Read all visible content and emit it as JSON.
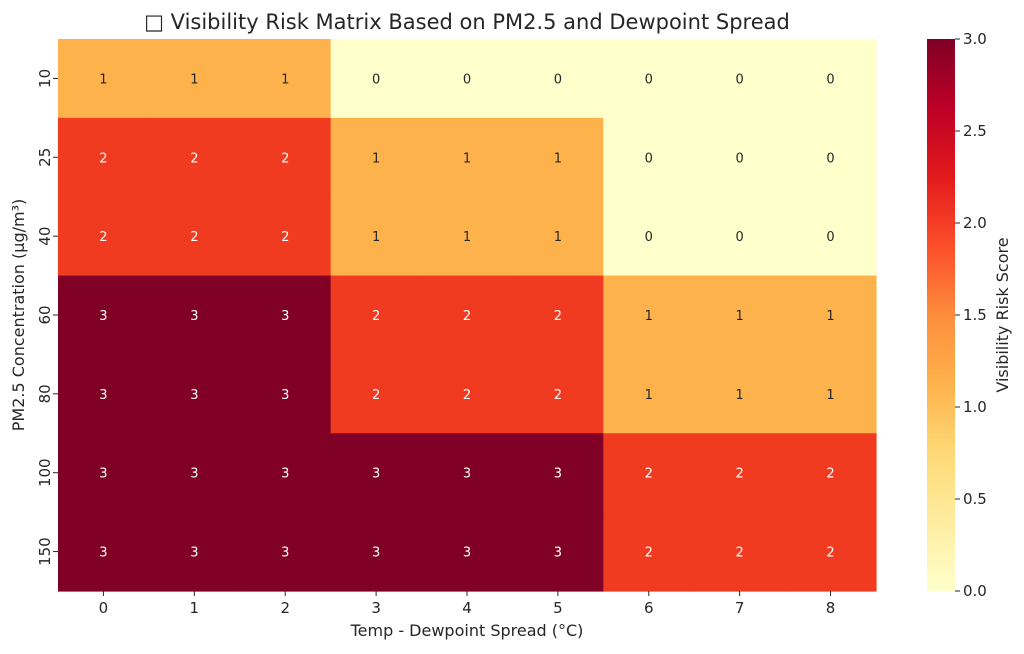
{
  "chart_data": {
    "type": "heatmap",
    "title": "□ Visibility Risk Matrix Based on PM2.5 and Dewpoint Spread",
    "xlabel": "Temp - Dewpoint Spread (°C)",
    "ylabel": "PM2.5 Concentration (μg/m³)",
    "x_categories": [
      "0",
      "1",
      "2",
      "3",
      "4",
      "5",
      "6",
      "7",
      "8"
    ],
    "y_categories": [
      "10",
      "25",
      "40",
      "60",
      "80",
      "100",
      "150"
    ],
    "values": [
      [
        1,
        1,
        1,
        0,
        0,
        0,
        0,
        0,
        0
      ],
      [
        2,
        2,
        2,
        1,
        1,
        1,
        0,
        0,
        0
      ],
      [
        2,
        2,
        2,
        1,
        1,
        1,
        0,
        0,
        0
      ],
      [
        3,
        3,
        3,
        2,
        2,
        2,
        1,
        1,
        1
      ],
      [
        3,
        3,
        3,
        2,
        2,
        2,
        1,
        1,
        1
      ],
      [
        3,
        3,
        3,
        3,
        3,
        3,
        2,
        2,
        2
      ],
      [
        3,
        3,
        3,
        3,
        3,
        3,
        2,
        2,
        2
      ]
    ],
    "annotations": true,
    "colormap": "YlOrRd",
    "colors": {
      "0": "#ffffcc",
      "1": "#feb24c",
      "2": "#f03b20",
      "3": "#800026"
    },
    "colorbar": {
      "label": "Visibility Risk Score",
      "range": [
        0,
        3
      ],
      "ticks": [
        "0.0",
        "0.5",
        "1.0",
        "1.5",
        "2.0",
        "2.5",
        "3.0"
      ]
    },
    "grid": false
  }
}
